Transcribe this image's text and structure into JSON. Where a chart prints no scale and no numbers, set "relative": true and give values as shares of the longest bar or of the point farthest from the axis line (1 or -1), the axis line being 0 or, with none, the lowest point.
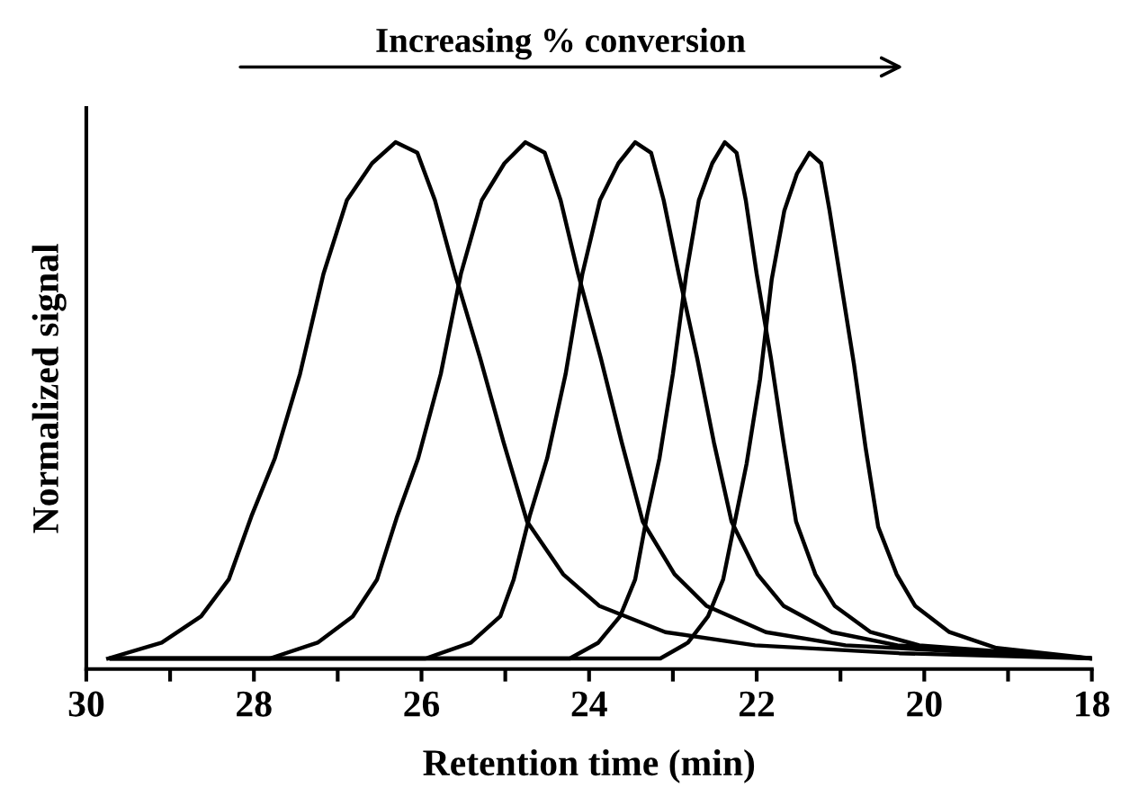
{
  "chart_data": {
    "type": "line",
    "relative": true,
    "xlabel": "Retention time (min)",
    "ylabel": "Normalized signal",
    "annotations": [
      "Increasing % conversion"
    ],
    "xlim": [
      30,
      18
    ],
    "xticks": [
      30,
      {
        "value": 29,
        "label": null
      },
      28,
      {
        "value": 27,
        "label": null
      },
      26,
      {
        "value": 25,
        "label": null
      },
      24,
      {
        "value": 23,
        "label": null
      },
      22,
      {
        "value": 21,
        "label": null
      },
      20,
      {
        "value": 19,
        "label": null
      },
      18
    ],
    "tick_labels": "x",
    "grid": false,
    "legend": false,
    "marker": "none",
    "line_style": "solid",
    "series": [
      {
        "color": "#000000",
        "x": [
          29.74,
          29.1,
          28.63,
          28.3,
          28.03,
          27.75,
          27.45,
          27.17,
          26.89,
          26.59,
          26.31,
          26.05,
          25.84,
          25.6,
          25.3,
          25.02,
          24.74,
          24.31,
          23.88,
          23.09,
          22.02,
          20.3,
          18.0
        ],
        "values": [
          0.02,
          0.05,
          0.1,
          0.17,
          0.29,
          0.4,
          0.56,
          0.75,
          0.89,
          0.96,
          1.0,
          0.98,
          0.89,
          0.75,
          0.59,
          0.43,
          0.28,
          0.18,
          0.12,
          0.07,
          0.045,
          0.03,
          0.02
        ]
      },
      {
        "color": "#000000",
        "x": [
          29.7,
          27.81,
          27.24,
          26.82,
          26.53,
          26.29,
          26.04,
          25.77,
          25.53,
          25.28,
          25.01,
          24.76,
          24.53,
          24.34,
          24.13,
          23.86,
          23.61,
          23.36,
          22.98,
          22.6,
          21.89,
          20.94,
          18.0
        ],
        "values": [
          0.02,
          0.02,
          0.05,
          0.1,
          0.17,
          0.29,
          0.4,
          0.56,
          0.75,
          0.89,
          0.96,
          1.0,
          0.98,
          0.89,
          0.75,
          0.59,
          0.43,
          0.28,
          0.18,
          0.12,
          0.07,
          0.045,
          0.02
        ]
      },
      {
        "color": "#000000",
        "x": [
          29.7,
          25.95,
          25.41,
          25.06,
          24.9,
          24.71,
          24.5,
          24.28,
          24.08,
          23.87,
          23.65,
          23.45,
          23.26,
          23.11,
          22.93,
          22.71,
          22.51,
          22.3,
          21.99,
          21.68,
          21.1,
          20.32,
          18.0
        ],
        "values": [
          0.02,
          0.02,
          0.05,
          0.1,
          0.17,
          0.29,
          0.4,
          0.56,
          0.75,
          0.89,
          0.96,
          1.0,
          0.98,
          0.89,
          0.75,
          0.59,
          0.43,
          0.28,
          0.18,
          0.12,
          0.07,
          0.045,
          0.02
        ]
      },
      {
        "color": "#000000",
        "x": [
          29.7,
          24.23,
          23.89,
          23.63,
          23.45,
          23.31,
          23.16,
          23.0,
          22.84,
          22.69,
          22.53,
          22.38,
          22.24,
          22.13,
          22.0,
          21.83,
          21.68,
          21.53,
          21.3,
          21.07,
          20.64,
          20.06,
          18.0
        ],
        "values": [
          0.02,
          0.02,
          0.05,
          0.1,
          0.17,
          0.29,
          0.4,
          0.56,
          0.75,
          0.89,
          0.96,
          1.0,
          0.98,
          0.89,
          0.75,
          0.59,
          0.43,
          0.28,
          0.18,
          0.12,
          0.07,
          0.045,
          0.02
        ]
      },
      {
        "color": "#000000",
        "x": [
          29.7,
          23.15,
          22.82,
          22.58,
          22.4,
          22.26,
          22.12,
          21.96,
          21.82,
          21.67,
          21.52,
          21.37,
          21.23,
          21.13,
          21.0,
          20.84,
          20.7,
          20.55,
          20.33,
          20.11,
          19.7,
          19.14,
          18.0
        ],
        "values": [
          0.02,
          0.02,
          0.05,
          0.1,
          0.17,
          0.28,
          0.39,
          0.55,
          0.74,
          0.87,
          0.94,
          0.98,
          0.96,
          0.87,
          0.74,
          0.58,
          0.42,
          0.27,
          0.18,
          0.12,
          0.07,
          0.04,
          0.02
        ]
      }
    ]
  }
}
